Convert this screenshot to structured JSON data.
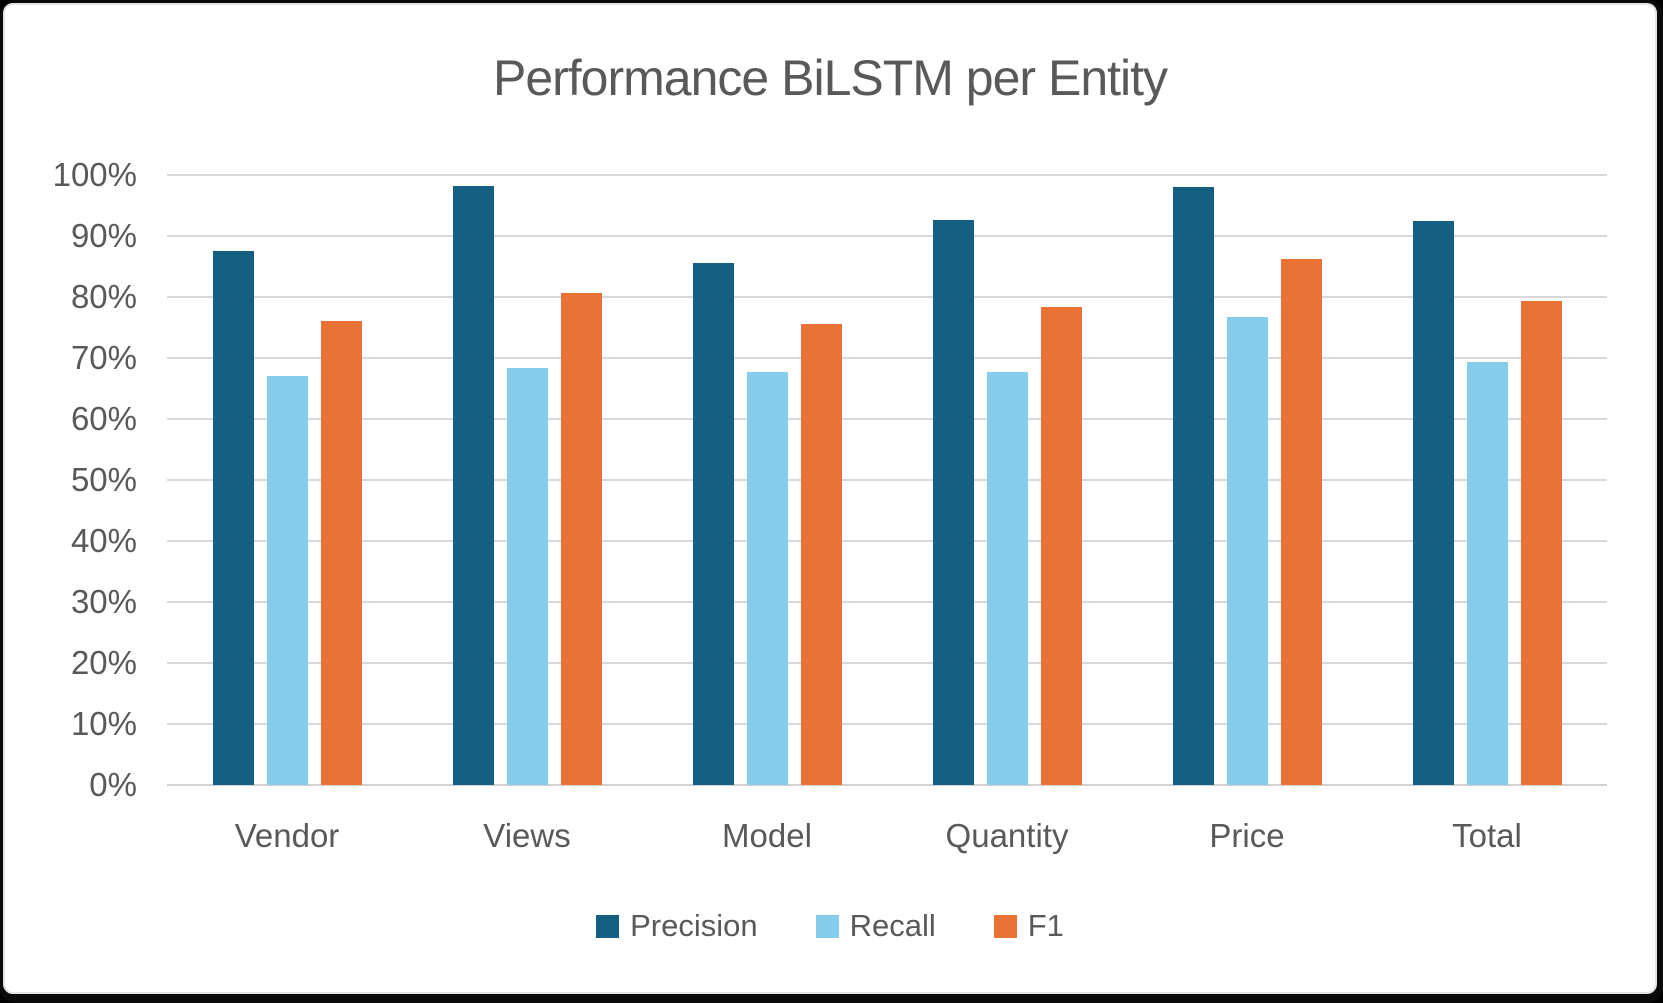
{
  "title": "Performance BiLSTM per Entity",
  "chart_data": {
    "type": "bar",
    "title": "Performance BiLSTM per Entity",
    "categories": [
      "Vendor",
      "Views",
      "Model",
      "Quantity",
      "Price",
      "Total"
    ],
    "series": [
      {
        "name": "Precision",
        "color": "#156082",
        "values": [
          87.6,
          98.2,
          85.5,
          92.6,
          98.1,
          92.4
        ]
      },
      {
        "name": "Recall",
        "color": "#86CDEB",
        "values": [
          67.0,
          68.3,
          67.7,
          67.7,
          76.8,
          69.4
        ]
      },
      {
        "name": "F1",
        "color": "#E97236",
        "values": [
          76.0,
          80.7,
          75.6,
          78.4,
          86.2,
          79.3
        ]
      }
    ],
    "ylabel": "",
    "xlabel": "",
    "ylim": [
      0,
      100
    ],
    "ytick_step": 10,
    "ytick_labels": [
      "0%",
      "10%",
      "20%",
      "30%",
      "40%",
      "50%",
      "60%",
      "70%",
      "80%",
      "90%",
      "100%"
    ],
    "grid": true,
    "legend_position": "bottom"
  },
  "colors": {
    "title_text": "#595959",
    "axis_text": "#595959",
    "gridline": "#d9d9d9",
    "background": "#ffffff",
    "frame": "#0a0a0a"
  }
}
